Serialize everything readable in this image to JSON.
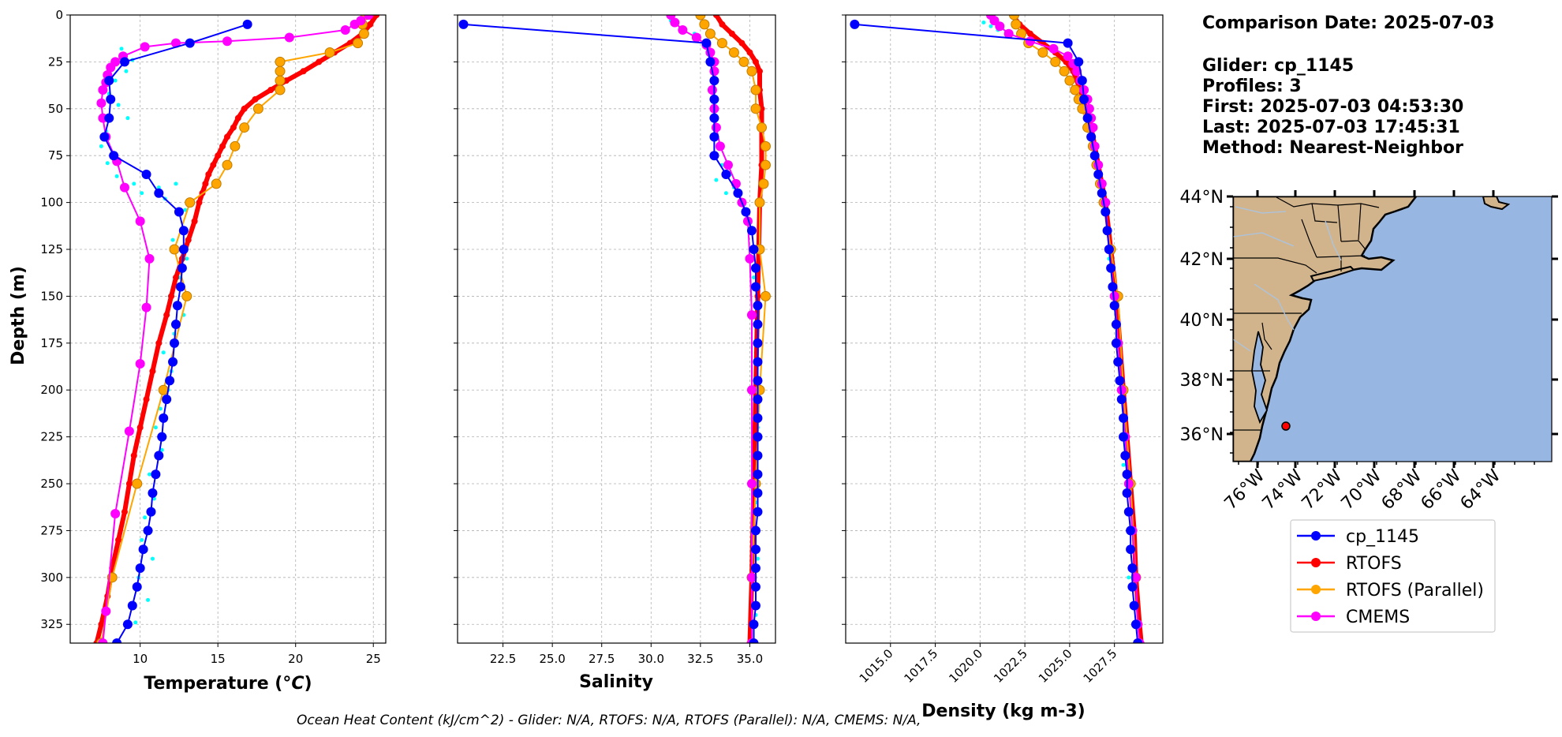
{
  "info": {
    "comparison_date": "Comparison Date: 2025-07-03",
    "glider": "Glider: cp_1145",
    "profiles": "Profiles: 3",
    "first": "First: 2025-07-03 04:53:30",
    "last": "Last: 2025-07-03 17:45:31",
    "method": "Method: Nearest-Neighbor"
  },
  "footer": "Ocean Heat Content (kJ/cm^2) - Glider: N/A,  RTOFS: N/A,  RTOFS (Parallel): N/A,  CMEMS: N/A,",
  "legend": [
    {
      "label": "cp_1145",
      "color": "#0000ff"
    },
    {
      "label": "RTOFS",
      "color": "#ff0000"
    },
    {
      "label": "RTOFS (Parallel)",
      "color": "#ffa500"
    },
    {
      "label": "CMEMS",
      "color": "#ff00ff"
    }
  ],
  "map": {
    "lat_labels": [
      "44°N",
      "42°N",
      "40°N",
      "38°N",
      "36°N"
    ],
    "lon_labels": [
      "76°W",
      "74°W",
      "72°W",
      "70°W",
      "68°W",
      "66°W",
      "64°W"
    ],
    "land_color": "#d2b48c",
    "ocean_color": "#97b6e1",
    "marker": {
      "lon": -75.1,
      "lat": 36.2,
      "color": "#ff0000"
    }
  },
  "chart_data": [
    {
      "type": "line",
      "xlabel": "Temperature (°C)",
      "ylabel": "Depth (m)",
      "xlim": [
        5.5,
        25.8
      ],
      "ylim": [
        335,
        0
      ],
      "yticks": [
        0,
        25,
        50,
        75,
        100,
        125,
        150,
        175,
        200,
        225,
        250,
        275,
        300,
        325
      ],
      "ytick_labels": [
        "0",
        "25",
        "50",
        "75",
        "100",
        "125",
        "150",
        "175",
        "200",
        "225",
        "250",
        "275",
        "300",
        "325"
      ],
      "xticks": [
        10,
        15,
        20,
        25
      ],
      "xtick_labels": [
        "10",
        "15",
        "20",
        "25"
      ],
      "grid": true,
      "series": [
        {
          "name": "cp_1145",
          "color": "#0000ff",
          "width": 2,
          "marker_r": 6,
          "y": [
            5,
            15,
            25,
            35,
            45,
            55,
            65,
            75,
            85,
            95,
            105,
            115,
            125,
            135,
            145,
            155,
            165,
            175,
            185,
            195,
            205,
            215,
            225,
            235,
            245,
            255,
            265,
            275,
            285,
            295,
            305,
            315,
            325,
            335
          ],
          "x": [
            16.9,
            13.2,
            9.0,
            8.0,
            8.1,
            8.0,
            7.7,
            8.3,
            10.4,
            11.2,
            12.5,
            12.8,
            12.8,
            12.7,
            12.6,
            12.4,
            12.3,
            12.2,
            12.1,
            11.9,
            11.7,
            11.5,
            11.4,
            11.2,
            11.0,
            10.8,
            10.7,
            10.5,
            10.2,
            10.0,
            9.8,
            9.5,
            9.2,
            8.5
          ]
        },
        {
          "name": "RTOFS",
          "color": "#ff0000",
          "width": 6,
          "marker_r": 4,
          "y": [
            0,
            5,
            10,
            15,
            20,
            25,
            30,
            35,
            40,
            45,
            50,
            55,
            60,
            65,
            70,
            75,
            80,
            85,
            90,
            95,
            100,
            110,
            120,
            130,
            140,
            150,
            160,
            175,
            190,
            205,
            220,
            235,
            250,
            265,
            280,
            295,
            310,
            325,
            335
          ],
          "x": [
            25.2,
            24.8,
            24.3,
            23.5,
            22.5,
            21.5,
            20.5,
            19.4,
            18.4,
            17.4,
            16.7,
            16.3,
            16.0,
            15.6,
            15.3,
            15.0,
            14.7,
            14.4,
            14.2,
            14.0,
            13.8,
            13.5,
            13.1,
            12.7,
            12.3,
            12.0,
            11.7,
            11.2,
            10.8,
            10.4,
            10.0,
            9.6,
            9.3,
            9.0,
            8.6,
            8.2,
            7.9,
            7.5,
            7.2
          ]
        },
        {
          "name": "RTOFS (Parallel)",
          "color": "#ffa500",
          "width": 2,
          "marker_r": 6,
          "y": [
            0,
            5,
            10,
            15,
            20,
            25,
            30,
            35,
            40,
            50,
            60,
            70,
            80,
            90,
            100,
            125,
            150,
            200,
            250,
            300,
            335
          ],
          "x": [
            24.5,
            24.3,
            24.4,
            24.0,
            22.2,
            19.0,
            19.0,
            19.0,
            19.0,
            17.6,
            16.7,
            16.1,
            15.6,
            14.9,
            13.2,
            12.2,
            13.0,
            11.5,
            9.8,
            8.2,
            7.5
          ]
        },
        {
          "name": "CMEMS",
          "color": "#ff00ff",
          "width": 2,
          "marker_r": 6,
          "y": [
            0,
            3,
            5,
            8,
            12,
            14,
            15,
            17,
            22,
            25,
            28,
            32,
            36,
            40,
            47,
            55,
            65,
            78,
            92,
            110,
            130,
            156,
            186,
            222,
            266,
            318,
            335
          ],
          "x": [
            24.7,
            24.2,
            23.8,
            23.2,
            19.6,
            15.6,
            12.3,
            10.3,
            8.9,
            8.4,
            8.1,
            7.9,
            7.8,
            7.6,
            7.5,
            7.6,
            7.8,
            8.5,
            9.0,
            10.0,
            10.6,
            10.4,
            10.0,
            9.3,
            8.4,
            7.8,
            7.6
          ]
        }
      ],
      "scatter": {
        "name": "cp_1145 raw",
        "color": "#00ffff",
        "r": 2.5,
        "x": [
          8.8,
          9.5,
          9.1,
          8.4,
          8.0,
          8.6,
          9.2,
          7.8,
          7.5,
          7.9,
          8.5,
          9.6,
          10.1,
          11.2,
          12.3,
          11.6,
          12.9,
          13.4,
          12.1,
          13.0,
          12.5,
          11.9,
          12.8,
          12.2,
          11.5,
          12.0,
          11.8,
          11.3,
          11.0,
          11.4,
          10.6,
          10.9,
          10.3,
          10.1,
          10.8,
          9.9,
          10.5,
          9.7
        ],
        "y": [
          18,
          24,
          30,
          35,
          42,
          48,
          55,
          62,
          70,
          79,
          86,
          90,
          95,
          92,
          90,
          98,
          104,
          112,
          120,
          130,
          140,
          150,
          160,
          170,
          180,
          190,
          200,
          210,
          220,
          232,
          245,
          258,
          268,
          280,
          290,
          300,
          312,
          324
        ]
      }
    },
    {
      "type": "line",
      "xlabel": "Salinity",
      "xlim": [
        20.2,
        36.3
      ],
      "ylim": [
        335,
        0
      ],
      "xticks": [
        22.5,
        25.0,
        27.5,
        30.0,
        32.5,
        35.0
      ],
      "xtick_labels": [
        "22.5",
        "25.0",
        "27.5",
        "30.0",
        "32.5",
        "35.0"
      ],
      "grid": true,
      "series": [
        {
          "name": "cp_1145",
          "color": "#0000ff",
          "width": 2,
          "marker_r": 6,
          "y": [
            5,
            15,
            25,
            35,
            45,
            55,
            65,
            75,
            85,
            95,
            105,
            115,
            125,
            135,
            145,
            155,
            165,
            175,
            185,
            195,
            205,
            215,
            225,
            235,
            245,
            255,
            265,
            275,
            285,
            295,
            305,
            315,
            325,
            335
          ],
          "x": [
            20.5,
            32.8,
            33.0,
            33.2,
            33.2,
            33.2,
            33.2,
            33.2,
            33.8,
            34.4,
            34.8,
            35.1,
            35.2,
            35.3,
            35.3,
            35.4,
            35.4,
            35.4,
            35.4,
            35.4,
            35.4,
            35.4,
            35.4,
            35.4,
            35.4,
            35.4,
            35.4,
            35.3,
            35.3,
            35.3,
            35.3,
            35.3,
            35.2,
            35.2
          ]
        },
        {
          "name": "RTOFS",
          "color": "#ff0000",
          "width": 6,
          "marker_r": 4,
          "y": [
            0,
            5,
            10,
            15,
            20,
            25,
            30,
            40,
            50,
            60,
            80,
            100,
            150,
            200,
            250,
            300,
            335
          ],
          "x": [
            33.3,
            33.6,
            34.1,
            34.6,
            35.0,
            35.3,
            35.5,
            35.5,
            35.6,
            35.6,
            35.6,
            35.5,
            35.4,
            35.3,
            35.2,
            35.1,
            35.0
          ]
        },
        {
          "name": "RTOFS (Parallel)",
          "color": "#ffa500",
          "width": 2,
          "marker_r": 6,
          "y": [
            0,
            5,
            10,
            15,
            20,
            25,
            30,
            40,
            50,
            60,
            70,
            80,
            90,
            100,
            125,
            150,
            200,
            250,
            300
          ],
          "x": [
            32.5,
            32.7,
            33.0,
            33.6,
            34.2,
            34.7,
            35.1,
            35.3,
            35.3,
            35.6,
            35.8,
            35.8,
            35.7,
            35.5,
            35.5,
            35.8,
            35.5,
            35.3,
            35.1
          ]
        },
        {
          "name": "CMEMS",
          "color": "#ff00ff",
          "width": 2,
          "marker_r": 6,
          "y": [
            0,
            4,
            8,
            12,
            16,
            20,
            25,
            30,
            40,
            50,
            60,
            70,
            80,
            90,
            100,
            110,
            130,
            160,
            200,
            250,
            300,
            335
          ],
          "x": [
            31.0,
            31.2,
            31.6,
            32.3,
            32.8,
            33.0,
            33.2,
            33.2,
            33.1,
            33.2,
            33.3,
            33.5,
            33.9,
            34.3,
            34.6,
            34.9,
            35.0,
            35.1,
            35.1,
            35.1,
            35.1,
            35.1
          ]
        }
      ],
      "scatter": {
        "name": "cp_1145 raw",
        "color": "#00ffff",
        "r": 2.5,
        "x": [
          31.0,
          32.2,
          33.6,
          33.3,
          33.8,
          34.0,
          33.5,
          34.2,
          35.2,
          35.3,
          35.4,
          35.3,
          35.4,
          35.3
        ],
        "y": [
          3,
          10,
          80,
          88,
          95,
          85,
          70,
          92,
          140,
          180,
          220,
          260,
          290,
          320
        ]
      }
    },
    {
      "type": "line",
      "xlabel": "Density (kg m-3)",
      "xlim": [
        1012.5,
        1030.2
      ],
      "ylim": [
        335,
        0
      ],
      "xticks": [
        1015.0,
        1017.5,
        1020.0,
        1022.5,
        1025.0,
        1027.5
      ],
      "xtick_labels": [
        "1015.0",
        "1017.5",
        "1020.0",
        "1022.5",
        "1025.0",
        "1027.5"
      ],
      "grid": true,
      "series": [
        {
          "name": "cp_1145",
          "color": "#0000ff",
          "width": 2,
          "marker_r": 6,
          "y": [
            5,
            15,
            25,
            35,
            45,
            55,
            65,
            75,
            85,
            95,
            105,
            115,
            125,
            135,
            145,
            155,
            165,
            175,
            185,
            195,
            205,
            215,
            225,
            235,
            245,
            255,
            265,
            275,
            285,
            295,
            305,
            315,
            325,
            335
          ],
          "x": [
            1013.0,
            1024.9,
            1025.5,
            1025.7,
            1025.8,
            1026.0,
            1026.2,
            1026.4,
            1026.6,
            1026.8,
            1027.0,
            1027.1,
            1027.2,
            1027.3,
            1027.4,
            1027.5,
            1027.6,
            1027.6,
            1027.7,
            1027.8,
            1027.9,
            1028.0,
            1028.0,
            1028.1,
            1028.2,
            1028.2,
            1028.3,
            1028.4,
            1028.4,
            1028.5,
            1028.5,
            1028.6,
            1028.7,
            1028.8
          ]
        },
        {
          "name": "RTOFS",
          "color": "#ff0000",
          "width": 6,
          "marker_r": 4,
          "y": [
            0,
            5,
            10,
            15,
            20,
            25,
            30,
            40,
            50,
            60,
            80,
            100,
            125,
            150,
            175,
            200,
            225,
            250,
            275,
            300,
            325,
            335
          ],
          "x": [
            1021.8,
            1022.2,
            1022.8,
            1023.5,
            1024.2,
            1024.8,
            1025.2,
            1025.6,
            1025.9,
            1026.2,
            1026.6,
            1027.0,
            1027.3,
            1027.6,
            1027.8,
            1028.0,
            1028.2,
            1028.4,
            1028.6,
            1028.7,
            1028.9,
            1029.0
          ]
        },
        {
          "name": "RTOFS (Parallel)",
          "color": "#ffa500",
          "width": 2,
          "marker_r": 6,
          "y": [
            0,
            5,
            10,
            15,
            20,
            25,
            30,
            35,
            40,
            45,
            50,
            60,
            70,
            80,
            90,
            100,
            125,
            150,
            200,
            250,
            300
          ],
          "x": [
            1021.9,
            1022.0,
            1022.3,
            1022.7,
            1023.5,
            1024.2,
            1024.7,
            1025.0,
            1025.3,
            1025.5,
            1025.7,
            1026.0,
            1026.3,
            1026.5,
            1026.7,
            1026.9,
            1027.3,
            1027.7,
            1028.0,
            1028.4,
            1028.7
          ]
        },
        {
          "name": "CMEMS",
          "color": "#ff00ff",
          "width": 2,
          "marker_r": 6,
          "y": [
            0,
            3,
            6,
            10,
            14,
            18,
            22,
            26,
            30,
            35,
            40,
            45,
            50,
            55,
            60,
            70,
            80,
            90,
            100,
            125,
            150,
            175,
            200,
            225,
            250,
            275,
            300,
            325,
            335
          ],
          "x": [
            1020.6,
            1020.8,
            1021.1,
            1021.6,
            1022.8,
            1024.1,
            1024.9,
            1025.2,
            1025.4,
            1025.6,
            1025.8,
            1026.0,
            1026.1,
            1026.2,
            1026.3,
            1026.4,
            1026.6,
            1026.8,
            1027.0,
            1027.2,
            1027.5,
            1027.7,
            1027.9,
            1028.1,
            1028.3,
            1028.5,
            1028.7,
            1028.8,
            1028.9
          ]
        }
      ],
      "scatter": {
        "name": "cp_1145 raw",
        "color": "#00ffff",
        "r": 2.5,
        "x": [
          1020.2,
          1020.6,
          1021.0,
          1026.7,
          1026.9,
          1027.2,
          1027.6,
          1028.0,
          1028.3
        ],
        "y": [
          4,
          6,
          8,
          90,
          96,
          130,
          175,
          240,
          300
        ]
      }
    }
  ]
}
